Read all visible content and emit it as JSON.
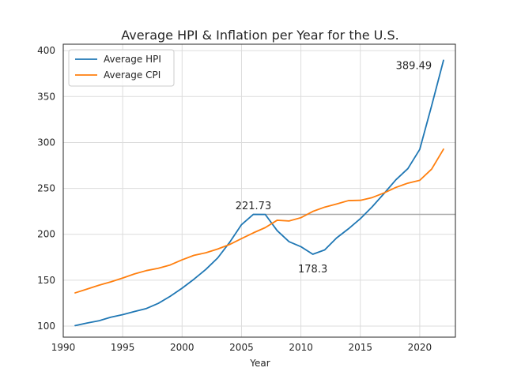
{
  "chart_data": {
    "type": "line",
    "title": "Average HPI & Inflation per Year for the U.S.",
    "xlabel": "Year",
    "ylabel": "",
    "xlim": [
      1990,
      2023
    ],
    "ylim": [
      88,
      407
    ],
    "grid": true,
    "legend_position": "top-left",
    "x_ticks": [
      1990,
      1995,
      2000,
      2005,
      2010,
      2015,
      2020
    ],
    "y_ticks": [
      100,
      150,
      200,
      250,
      300,
      350,
      400
    ],
    "x": [
      1991,
      1992,
      1993,
      1994,
      1995,
      1996,
      1997,
      1998,
      1999,
      2000,
      2001,
      2002,
      2003,
      2004,
      2005,
      2006,
      2007,
      2008,
      2009,
      2010,
      2011,
      2012,
      2013,
      2014,
      2015,
      2016,
      2017,
      2018,
      2019,
      2020,
      2021,
      2022
    ],
    "series": [
      {
        "name": "Average HPI",
        "color": "#1f77b4",
        "values": [
          100.6,
          103.4,
          105.8,
          109.7,
          112.5,
          115.9,
          119.2,
          124.8,
          132.5,
          141.3,
          151.1,
          161.8,
          174.3,
          191.2,
          210.5,
          221.73,
          221.6,
          204.0,
          192.0,
          186.5,
          178.3,
          183.0,
          196.0,
          206.0,
          217.0,
          230.0,
          244.5,
          259.5,
          271.5,
          292.5,
          340.0,
          389.49
        ]
      },
      {
        "name": "Average CPI",
        "color": "#ff7f0e",
        "values": [
          136.2,
          140.3,
          144.5,
          148.2,
          152.4,
          156.9,
          160.5,
          163.0,
          166.6,
          172.2,
          177.1,
          179.9,
          184.0,
          188.9,
          195.3,
          201.6,
          207.3,
          215.3,
          214.5,
          218.1,
          224.9,
          229.6,
          233.0,
          236.7,
          237.0,
          240.0,
          245.1,
          251.1,
          255.7,
          258.8,
          271.0,
          292.7
        ]
      }
    ],
    "reference_line": {
      "y": 221.73,
      "x_start": 2006,
      "x_end": 2023,
      "color": "#aaaaaa"
    },
    "annotations": [
      {
        "text": "221.73",
        "x": 2006,
        "y": 227.5
      },
      {
        "text": "178.3",
        "x": 2011,
        "y": 158.5
      },
      {
        "text": "389.49",
        "x": 2019.5,
        "y": 380
      }
    ],
    "colors": {
      "grid": "#dcdcdc",
      "spine": "#262626",
      "text": "#262626"
    }
  }
}
